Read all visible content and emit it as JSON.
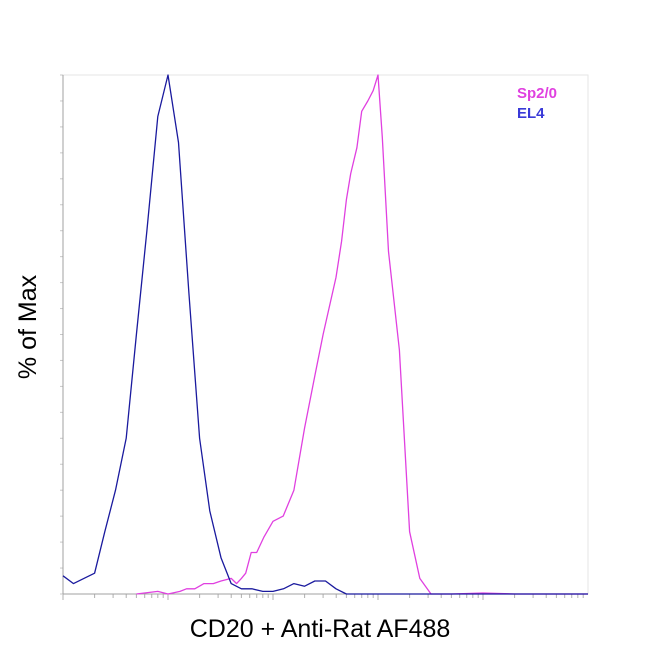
{
  "chart_data": {
    "type": "line",
    "title": "",
    "xlabel": "CD20 + Anti-Rat AF488",
    "ylabel": "% of Max",
    "x_scale": "log",
    "xlim": [
      1,
      100000
    ],
    "ylim": [
      0,
      100
    ],
    "grid": false,
    "legend_position": "top-right",
    "series": [
      {
        "name": "Sp2/0",
        "color": "#e040e0",
        "x": [
          5,
          8,
          10,
          13,
          15,
          18,
          22,
          27,
          32,
          40,
          45,
          50,
          55,
          62,
          70,
          82,
          100,
          125,
          158,
          200,
          250,
          300,
          398,
          450,
          500,
          550,
          630,
          700,
          800,
          900,
          1000,
          1100,
          1260,
          1600,
          2000,
          2500,
          3200,
          5000,
          10000,
          20000,
          50000,
          100000
        ],
        "y": [
          0,
          0.5,
          0,
          0.5,
          1,
          1,
          2,
          2,
          2.5,
          3,
          2,
          3,
          4,
          8,
          8,
          11,
          14,
          15,
          20,
          32,
          42,
          50,
          61,
          68,
          76,
          81,
          86,
          93,
          95,
          97,
          100,
          88,
          66,
          47,
          12,
          3,
          0,
          0,
          0.2,
          0,
          0,
          0
        ]
      },
      {
        "name": "EL4",
        "color": "#1a1a9e",
        "x": [
          1,
          1.26,
          1.58,
          2,
          2.5,
          3.16,
          4,
          5,
          6.3,
          8,
          10,
          12.6,
          15.8,
          20,
          25,
          32,
          40,
          50,
          63,
          80,
          100,
          126,
          158,
          200,
          250,
          316,
          398,
          500,
          1000,
          10000,
          100000
        ],
        "y": [
          3.5,
          2,
          3,
          4,
          12,
          20,
          30,
          50,
          70,
          92,
          100,
          87,
          58,
          30,
          16,
          7,
          2,
          1,
          1,
          0.5,
          0.5,
          1,
          2,
          1.5,
          2.5,
          2.5,
          1,
          0,
          0,
          0,
          0
        ]
      }
    ]
  }
}
